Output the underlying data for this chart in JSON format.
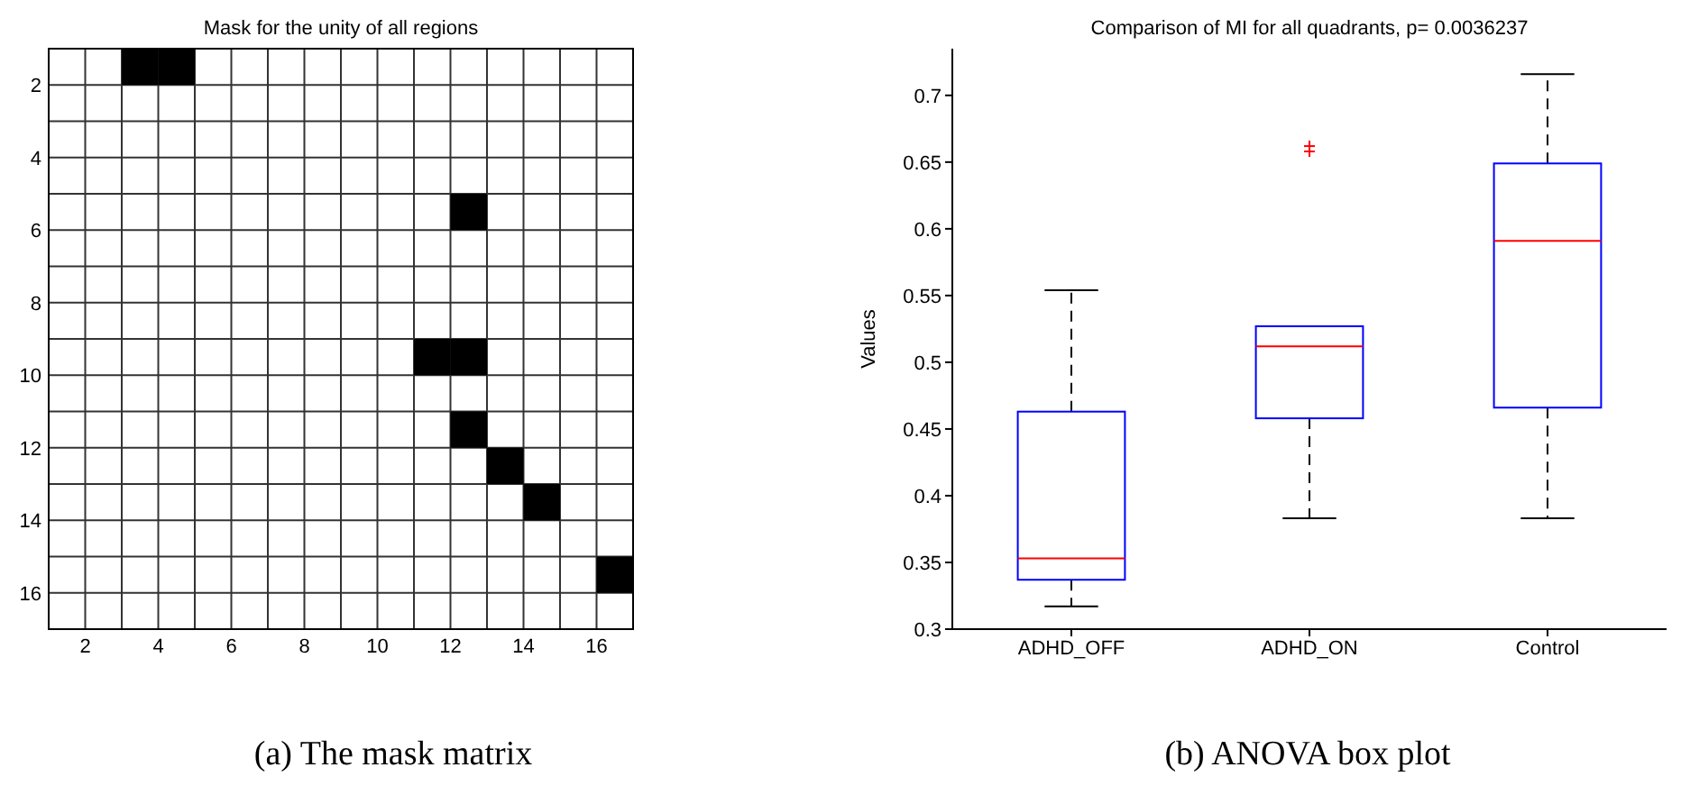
{
  "chart_data": [
    {
      "type": "scatter",
      "title": "Mask for the unity of all regions",
      "marker": "square",
      "color": "#000000",
      "grid": true,
      "xlim": [
        1,
        17
      ],
      "xticks": [
        2,
        {
          "value": 3,
          "label": null
        },
        4,
        {
          "value": 5,
          "label": null
        },
        6,
        {
          "value": 7,
          "label": null
        },
        8,
        {
          "value": 9,
          "label": null
        },
        10,
        {
          "value": 11,
          "label": null
        },
        12,
        {
          "value": 13,
          "label": null
        },
        14,
        {
          "value": 15,
          "label": null
        },
        16
      ],
      "ylim": [
        17,
        1
      ],
      "yticks": [
        2,
        {
          "value": 3,
          "label": null
        },
        4,
        {
          "value": 5,
          "label": null
        },
        6,
        {
          "value": 7,
          "label": null
        },
        8,
        {
          "value": 9,
          "label": null
        },
        10,
        {
          "value": 11,
          "label": null
        },
        12,
        {
          "value": 13,
          "label": null
        },
        14,
        {
          "value": 15,
          "label": null
        },
        16
      ],
      "x": [
        3.5,
        4.5,
        12.5,
        11.5,
        12.5,
        12.5,
        13.5,
        14.5,
        16.5
      ],
      "values": [
        1.5,
        1.5,
        5.5,
        9.5,
        9.5,
        11.5,
        12.5,
        13.5,
        15.5
      ],
      "annotations": [
        "(a) The mask matrix"
      ]
    },
    {
      "type": "box",
      "title": "Comparison of MI for all quadrants, p= 0.0036237",
      "ylabel": "Values",
      "categories": [
        "ADHD_OFF",
        "ADHD_ON",
        "Control"
      ],
      "ylim": [
        0.3,
        0.735
      ],
      "yticks": [
        0.3,
        0.35,
        0.4,
        0.45,
        0.5,
        0.55,
        0.6,
        0.65,
        0.7
      ],
      "color": "#0000ff",
      "annotations": [
        "(b) ANOVA box plot"
      ],
      "boxes": [
        {
          "low": 0.317,
          "q1": 0.337,
          "median": 0.353,
          "q3": 0.463,
          "high": 0.554
        },
        {
          "low": 0.383,
          "q1": 0.458,
          "median": 0.512,
          "q3": 0.527,
          "high": 0.527,
          "outliers": [
            0.662,
            0.658
          ]
        },
        {
          "low": 0.383,
          "q1": 0.466,
          "median": 0.591,
          "q3": 0.649,
          "high": 0.716
        }
      ]
    }
  ]
}
